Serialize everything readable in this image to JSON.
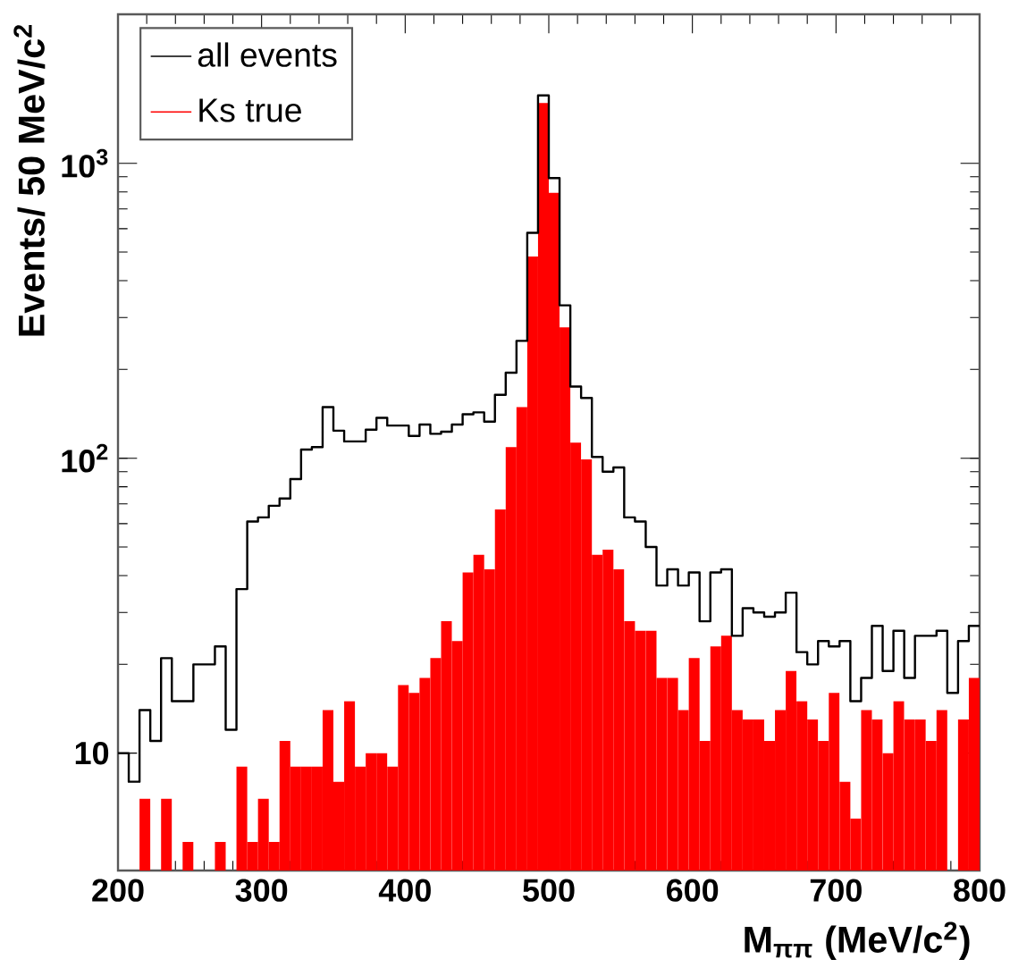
{
  "chart_data": {
    "type": "histogram",
    "xlabel": "M$_{ππ}$ (MeV/c$^{2}$)",
    "ylabel": "Events/ 50 MeV/c$^{2}$",
    "bins": [
      200,
      207.5,
      215,
      222.5,
      230,
      237.5,
      245,
      252.5,
      260,
      267.5,
      275,
      282.5,
      290,
      297.5,
      305,
      312.5,
      320,
      327.5,
      335,
      342.5,
      350,
      357.5,
      365,
      372.5,
      380,
      387.5,
      395,
      402.5,
      410,
      417.5,
      425,
      432.5,
      440,
      447.5,
      455,
      462.5,
      470,
      477.5,
      485,
      492.5,
      500,
      507.5,
      515,
      522.5,
      530,
      537.5,
      545,
      552.5,
      560,
      567.5,
      575,
      582.5,
      590,
      597.5,
      605,
      612.5,
      620,
      627.5,
      635,
      642.5,
      650,
      657.5,
      665,
      672.5,
      680,
      687.5,
      695,
      702.5,
      710,
      717.5,
      725,
      732.5,
      740,
      747.5,
      755,
      762.5,
      770,
      777.5,
      785,
      792.5,
      800
    ],
    "series": [
      {
        "name": "all events",
        "type": "step",
        "color": "#000000",
        "x": [
          200,
          207.5,
          215,
          222.5,
          230,
          237.5,
          245,
          252.5,
          260,
          267.5,
          275,
          282.5,
          290,
          297.5,
          305,
          312.5,
          320,
          327.5,
          335,
          342.5,
          350,
          357.5,
          365,
          372.5,
          380,
          387.5,
          395,
          402.5,
          410,
          417.5,
          425,
          432.5,
          440,
          447.5,
          455,
          462.5,
          470,
          477.5,
          485,
          492.5,
          500,
          507.5,
          515,
          522.5,
          530,
          537.5,
          545,
          552.5,
          560,
          567.5,
          575,
          582.5,
          590,
          597.5,
          605,
          612.5,
          620,
          627.5,
          635,
          642.5,
          650,
          657.5,
          665,
          672.5,
          680,
          687.5,
          695,
          702.5,
          710,
          717.5,
          725,
          732.5,
          740,
          747.5,
          755,
          762.5,
          770,
          777.5,
          785,
          792.5,
          800
        ],
        "values": [
          10,
          8,
          14,
          11,
          21,
          15,
          15,
          20,
          20,
          23,
          12,
          36,
          61,
          63,
          69,
          73,
          85,
          107,
          109,
          149,
          124,
          114,
          114,
          125,
          137,
          129,
          129,
          119,
          130,
          121,
          123,
          130,
          141,
          143,
          133,
          164,
          195,
          250,
          581,
          1698,
          891,
          330,
          175,
          160,
          101,
          90,
          93,
          63,
          61,
          50,
          37,
          42,
          37,
          41,
          28,
          41,
          42,
          25,
          31,
          30,
          29,
          30,
          35,
          22,
          20,
          24,
          23,
          24,
          15,
          18,
          27,
          19,
          26,
          18,
          25,
          25,
          26,
          16,
          24,
          27,
          27
        ]
      },
      {
        "name": "Ks true",
        "color": "#ff0000",
        "values": [
          null,
          null,
          7,
          null,
          7,
          null,
          5,
          null,
          null,
          5,
          null,
          9,
          5,
          7,
          5,
          11,
          9,
          9,
          9,
          14,
          8,
          15,
          9,
          10,
          10,
          9,
          17,
          16,
          18,
          21,
          28,
          24,
          41,
          47,
          42,
          67,
          109,
          149,
          483,
          1600,
          794,
          278,
          113,
          99,
          47,
          49,
          42,
          28,
          26,
          26,
          18,
          18,
          14,
          21,
          11,
          23,
          25,
          14,
          13,
          13,
          11,
          14,
          19,
          15,
          13,
          11,
          16,
          8,
          6,
          14,
          13,
          10,
          15,
          13,
          13,
          11,
          14,
          null,
          13,
          18
        ]
      }
    ],
    "xlim": [
      200,
      800
    ],
    "xticks": [
      200,
      300,
      400,
      500,
      600,
      700,
      800
    ],
    "ylim": [
      4,
      3200
    ],
    "yticks": [
      10,
      {
        "value": 100,
        "label": "10$^{2}$"
      },
      {
        "value": 1000,
        "label": "10$^{3}$"
      }
    ],
    "log": "y",
    "grid": false,
    "legend": "top left",
    "marker": "none"
  }
}
